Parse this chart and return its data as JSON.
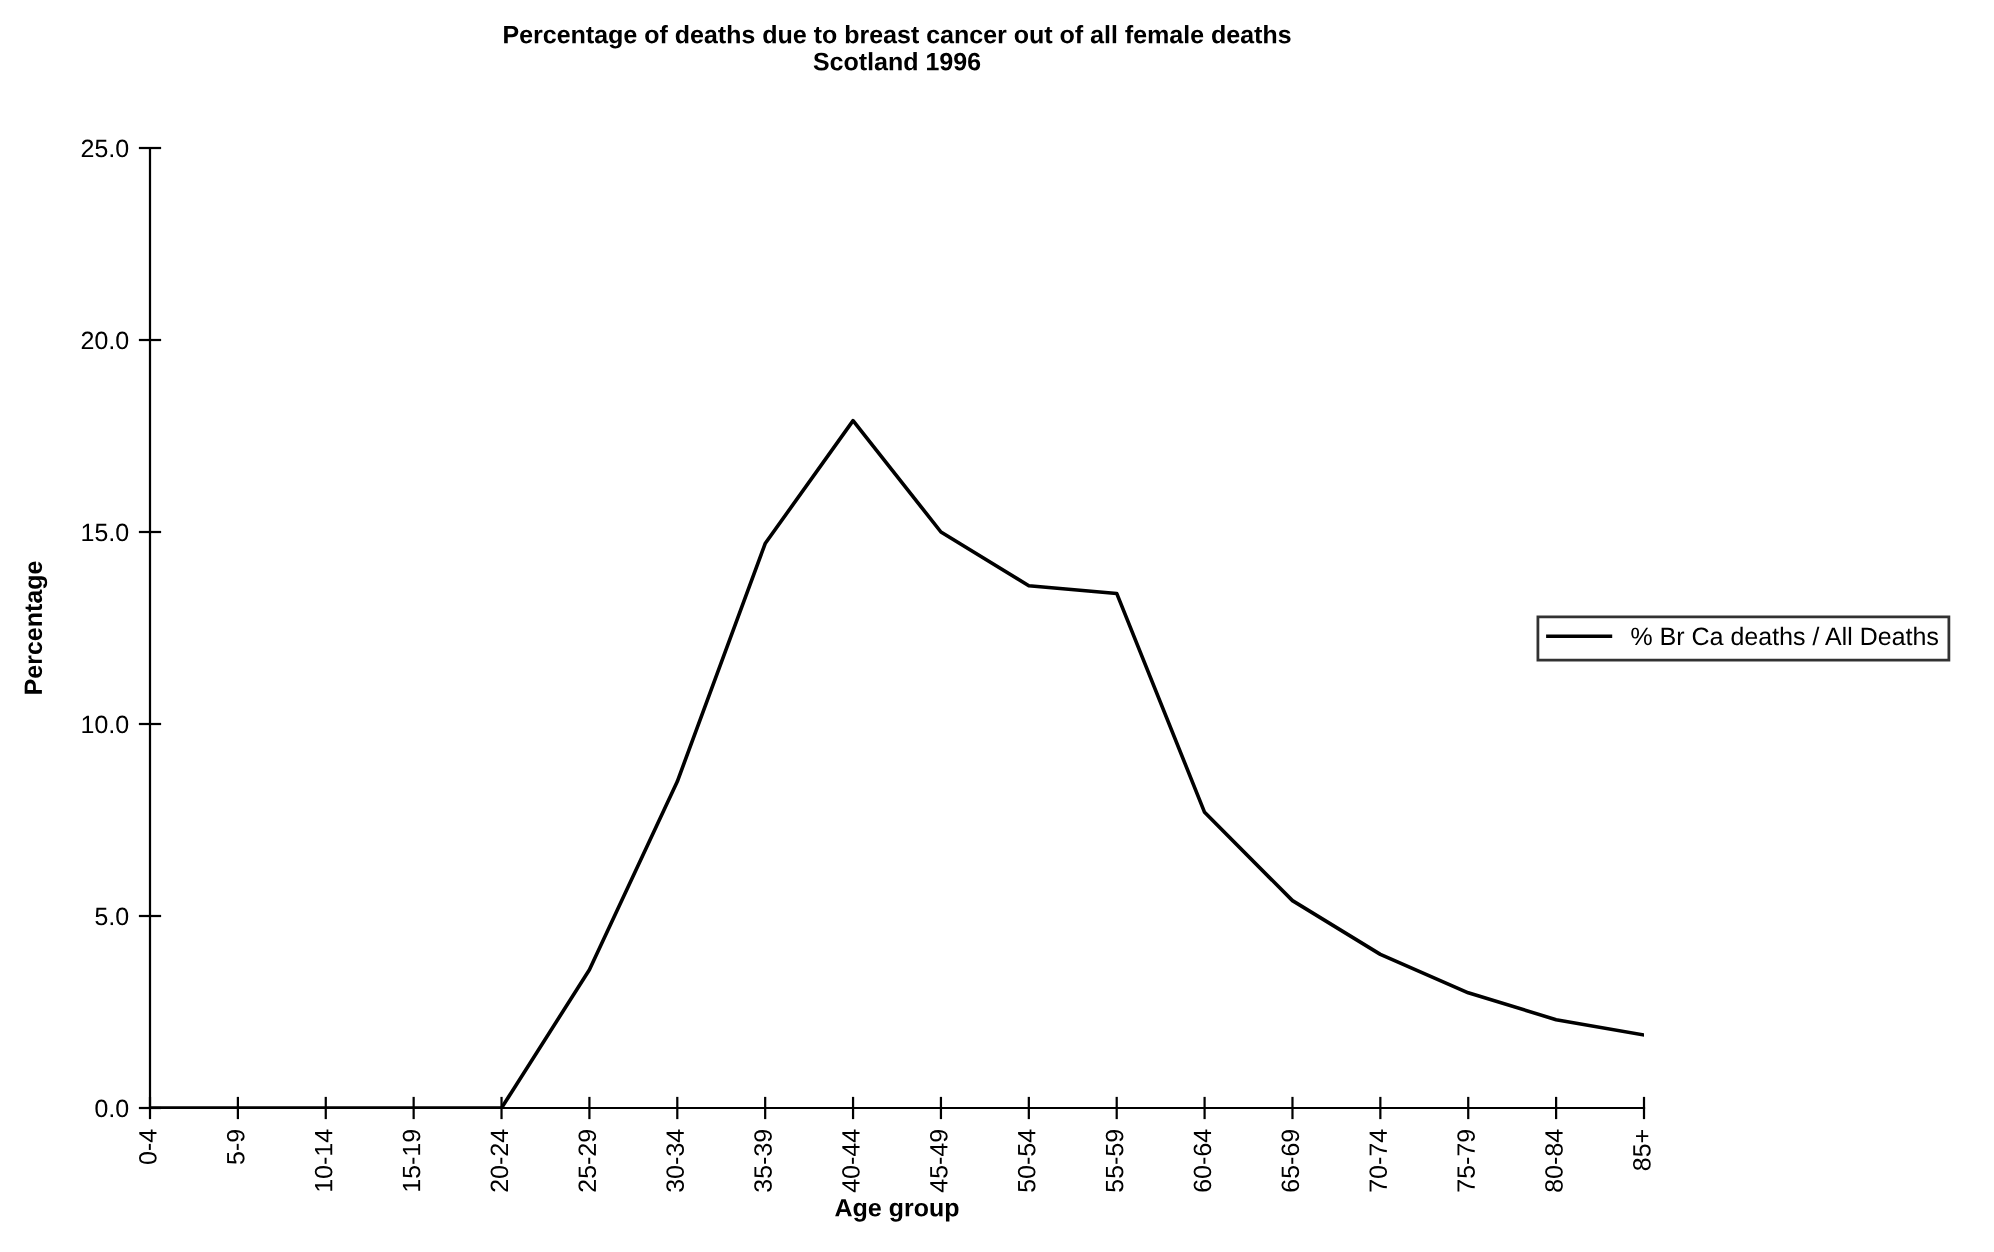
{
  "chart_data": {
    "type": "line",
    "title": "Percentage of deaths due to breast cancer out of all female deaths\nScotland 1996",
    "xlabel": "Age group",
    "ylabel": "Percentage",
    "categories": [
      "0-4",
      "5-9",
      "10-14",
      "15-19",
      "20-24",
      "25-29",
      "30-34",
      "35-39",
      "40-44",
      "45-49",
      "50-54",
      "55-59",
      "60-64",
      "65-69",
      "70-74",
      "75-79",
      "80-84",
      "85+"
    ],
    "series": [
      {
        "name": "% Br Ca deaths / All Deaths",
        "color": "#000000",
        "values": [
          0,
          0,
          0,
          0,
          0,
          3.6,
          8.5,
          14.7,
          17.9,
          15.0,
          13.6,
          13.4,
          7.7,
          5.4,
          4.0,
          3.0,
          2.3,
          1.9
        ]
      }
    ],
    "ylim": [
      0,
      25
    ],
    "yticks": [
      {
        "value": 0,
        "label": "0.0"
      },
      {
        "value": 5,
        "label": "5.0"
      },
      {
        "value": 10,
        "label": "10.0"
      },
      {
        "value": 15,
        "label": "15.0"
      },
      {
        "value": 20,
        "label": "20.0"
      },
      {
        "value": 25,
        "label": "25.0"
      }
    ],
    "legend": "right",
    "grid": false,
    "marker": "none",
    "line_style": "solid"
  }
}
